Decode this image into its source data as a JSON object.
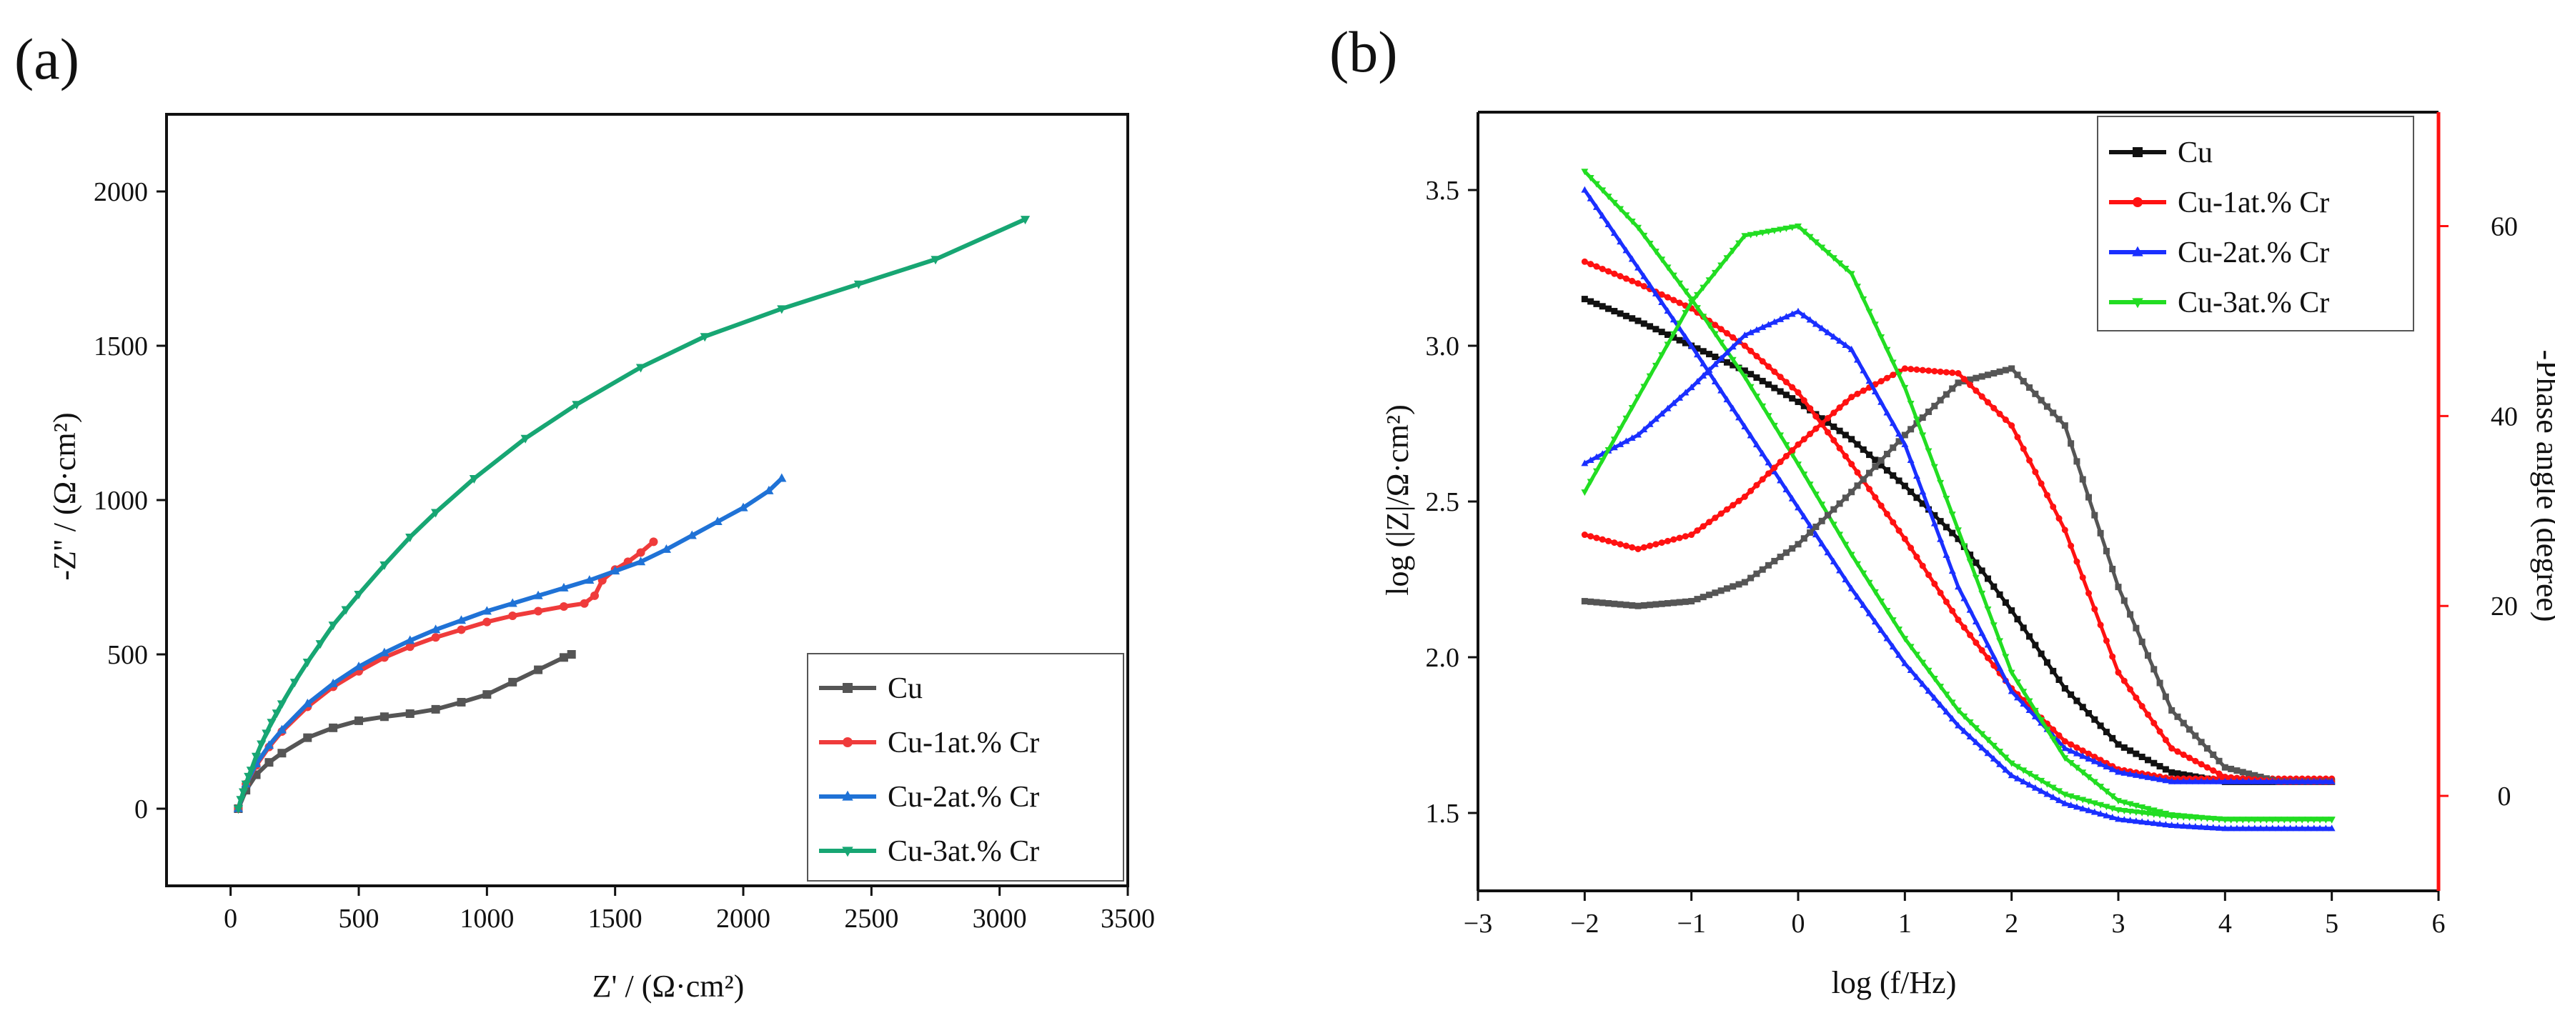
{
  "chart_data": [
    {
      "panel": "(a)",
      "type": "line",
      "title": "",
      "xlabel": "Z' / (Ω·cm²)",
      "ylabel": "-Z'' / (Ω·cm²)",
      "xlim": [
        -250,
        3500
      ],
      "ylim": [
        -250,
        2250
      ],
      "xticks": [
        0,
        500,
        1000,
        1500,
        2000,
        2500,
        3000,
        3500
      ],
      "yticks": [
        0,
        500,
        1000,
        1500,
        2000
      ],
      "legend_position": "bottom-right",
      "series": [
        {
          "name": "Cu",
          "color": "#555555",
          "marker": "square",
          "x": [
            30,
            60,
            100,
            150,
            200,
            300,
            400,
            500,
            600,
            700,
            800,
            900,
            1000,
            1100,
            1200,
            1300,
            1330
          ],
          "y": [
            0,
            60,
            110,
            150,
            180,
            230,
            262,
            285,
            298,
            308,
            322,
            345,
            370,
            410,
            450,
            490,
            500
          ]
        },
        {
          "name": "Cu-1at.% Cr",
          "color": "#ef3b3b",
          "marker": "circle",
          "x": [
            30,
            60,
            100,
            150,
            200,
            300,
            400,
            500,
            600,
            700,
            800,
            900,
            1000,
            1100,
            1200,
            1300,
            1380,
            1420,
            1450,
            1500,
            1550,
            1600,
            1650
          ],
          "y": [
            0,
            80,
            140,
            200,
            250,
            330,
            395,
            445,
            490,
            525,
            555,
            580,
            605,
            625,
            640,
            655,
            665,
            690,
            740,
            775,
            800,
            830,
            865
          ]
        },
        {
          "name": "Cu-2at.% Cr",
          "color": "#1f72d6",
          "marker": "triangle-up",
          "x": [
            30,
            60,
            100,
            150,
            200,
            300,
            400,
            500,
            600,
            700,
            800,
            900,
            1000,
            1100,
            1200,
            1300,
            1400,
            1500,
            1600,
            1700,
            1800,
            1900,
            2000,
            2100,
            2150
          ],
          "y": [
            0,
            80,
            145,
            205,
            255,
            340,
            405,
            460,
            505,
            545,
            580,
            610,
            640,
            665,
            690,
            715,
            740,
            770,
            800,
            840,
            885,
            930,
            975,
            1030,
            1070
          ]
        },
        {
          "name": "Cu-3at.% Cr",
          "color": "#17a673",
          "marker": "triangle-down",
          "x": [
            30,
            40,
            50,
            60,
            70,
            80,
            100,
            120,
            140,
            160,
            180,
            200,
            250,
            300,
            350,
            400,
            450,
            500,
            600,
            700,
            800,
            950,
            1150,
            1350,
            1600,
            1850,
            2150,
            2450,
            2750,
            3100
          ],
          "y": [
            0,
            30,
            55,
            80,
            105,
            125,
            170,
            210,
            245,
            280,
            310,
            340,
            410,
            475,
            535,
            595,
            645,
            695,
            790,
            880,
            960,
            1070,
            1200,
            1310,
            1430,
            1530,
            1620,
            1700,
            1780,
            1910
          ]
        }
      ]
    },
    {
      "panel": "(b)",
      "type": "line",
      "title": "",
      "xlabel": "log (f/Hz)",
      "ylabel": "log (|Z|/Ω·cm²)",
      "y2label": "-Phase angle (degree)",
      "xlim": [
        -3,
        6
      ],
      "ylim": [
        1.25,
        3.75
      ],
      "y2lim": [
        -10,
        72
      ],
      "xticks": [
        -3,
        -2,
        -1,
        0,
        1,
        2,
        3,
        4,
        5,
        6
      ],
      "yticks": [
        1.5,
        2.0,
        2.5,
        3.0,
        3.5
      ],
      "y2ticks": [
        0,
        20,
        40,
        60
      ],
      "legend_position": "top-right",
      "x_data": [
        -2,
        -1.5,
        -1,
        -0.5,
        0,
        0.5,
        1,
        1.5,
        2,
        2.5,
        3,
        3.5,
        4,
        4.5,
        5
      ],
      "series": [
        {
          "name": "Cu",
          "color": "#111111",
          "marker": "square",
          "axis": "left",
          "legend": true,
          "y": [
            3.15,
            3.08,
            3.0,
            2.92,
            2.82,
            2.7,
            2.55,
            2.38,
            2.15,
            1.9,
            1.72,
            1.63,
            1.6,
            1.6,
            1.6
          ]
        },
        {
          "name": "Cu-1at.% Cr",
          "color": "#ff1111",
          "marker": "circle",
          "axis": "left",
          "legend": true,
          "y": [
            3.27,
            3.2,
            3.12,
            3.0,
            2.85,
            2.62,
            2.38,
            2.12,
            1.9,
            1.73,
            1.64,
            1.61,
            1.61,
            1.61,
            1.61
          ]
        },
        {
          "name": "Cu-2at.% Cr",
          "color": "#1a2fff",
          "marker": "triangle-up",
          "axis": "left",
          "legend": true,
          "y": [
            3.5,
            3.25,
            3.0,
            2.74,
            2.48,
            2.22,
            1.98,
            1.78,
            1.62,
            1.53,
            1.48,
            1.46,
            1.45,
            1.45,
            1.45
          ]
        },
        {
          "name": "Cu-3at.% Cr",
          "color": "#22dd22",
          "marker": "triangle-down",
          "axis": "left",
          "legend": true,
          "y": [
            3.56,
            3.38,
            3.15,
            2.9,
            2.62,
            2.33,
            2.06,
            1.83,
            1.66,
            1.56,
            1.51,
            1.49,
            1.48,
            1.48,
            1.48
          ]
        },
        {
          "name": "Cu phase",
          "color": "#555555",
          "marker": "square",
          "axis": "right",
          "legend": false,
          "y": [
            20.5,
            20,
            20.5,
            22.5,
            26.5,
            32,
            38,
            43.5,
            45,
            39,
            22,
            9,
            3,
            1.5,
            1.5
          ]
        },
        {
          "name": "Cu-1at.% Cr phase",
          "color": "#ff1111",
          "marker": "circle",
          "axis": "right",
          "legend": true,
          "y": [
            27.5,
            26,
            27.5,
            31.5,
            37,
            42,
            45,
            44.5,
            39,
            28,
            13,
            5,
            2,
            1.5,
            1.5
          ]
        },
        {
          "name": "Cu-2at.% Cr phase",
          "color": "#1a2fff",
          "marker": "triangle-up",
          "axis": "right",
          "legend": false,
          "y": [
            35,
            38,
            43,
            48.5,
            51,
            47,
            37,
            22,
            11,
            5,
            2.5,
            1.5,
            1.5,
            1.5,
            1.5
          ]
        },
        {
          "name": "Cu-3at.% Cr phase",
          "color": "#22dd22",
          "marker": "triangle-down",
          "axis": "right",
          "legend": false,
          "y": [
            32,
            42,
            52,
            59,
            60,
            55,
            43,
            28,
            13,
            4,
            -0.5,
            -2,
            -2.5,
            -2.5,
            -2.5
          ]
        }
      ]
    }
  ]
}
